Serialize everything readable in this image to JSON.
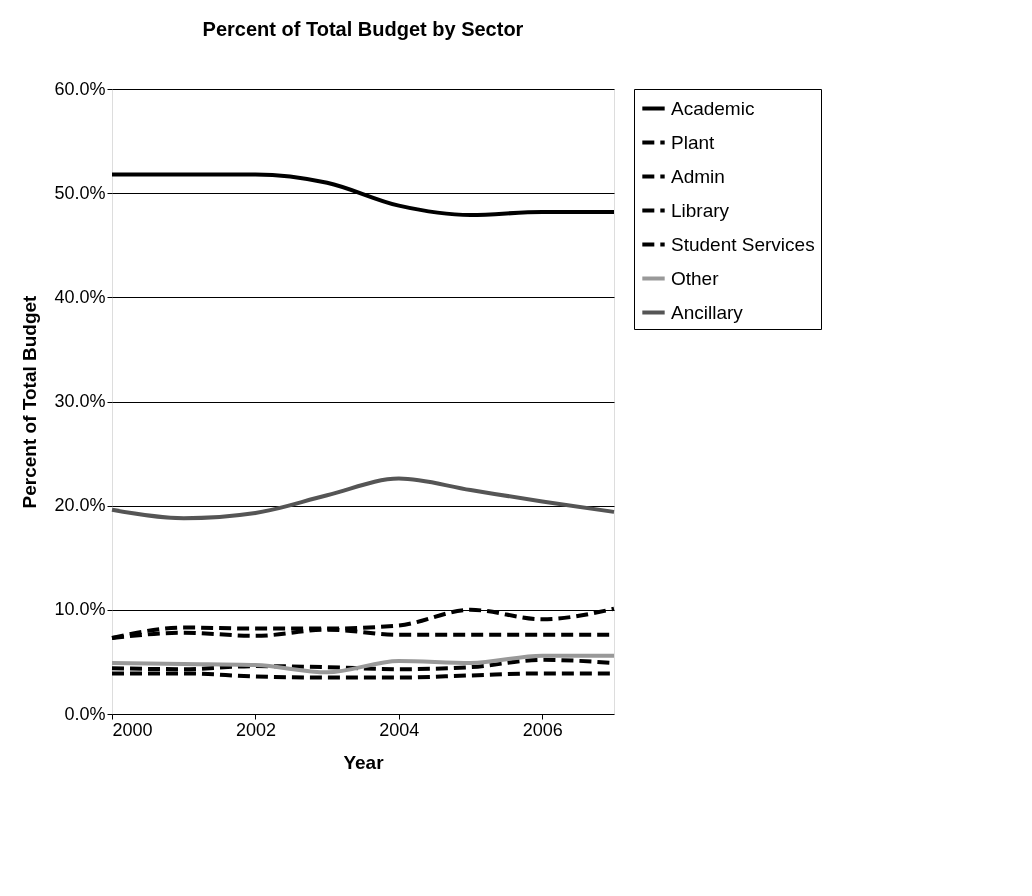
{
  "chart_data": {
    "type": "line",
    "title": "Percent of Total Budget by Sector",
    "xlabel": "Year",
    "ylabel": "Percent of Total Budget",
    "x": [
      2000,
      2001,
      2002,
      2003,
      2004,
      2005,
      2006,
      2007
    ],
    "series": [
      {
        "name": "Academic",
        "color": "#000000",
        "line_style": "solid",
        "values": [
          51.8,
          51.8,
          51.8,
          51.0,
          48.8,
          47.9,
          48.2,
          48.2
        ]
      },
      {
        "name": "Plant",
        "color": "#000000",
        "line_style": "dashed",
        "values": [
          7.3,
          7.8,
          7.5,
          8.1,
          7.6,
          7.6,
          7.6,
          7.6
        ]
      },
      {
        "name": "Admin",
        "color": "#000000",
        "line_style": "dashed",
        "values": [
          7.3,
          8.3,
          8.2,
          8.2,
          8.5,
          10.0,
          9.1,
          10.1
        ]
      },
      {
        "name": "Library",
        "color": "#000000",
        "line_style": "dashed",
        "values": [
          4.4,
          4.3,
          4.6,
          4.5,
          4.3,
          4.5,
          5.2,
          4.9
        ]
      },
      {
        "name": "Student Services",
        "color": "#000000",
        "line_style": "dashed",
        "values": [
          3.9,
          3.9,
          3.6,
          3.5,
          3.5,
          3.7,
          3.9,
          3.9
        ]
      },
      {
        "name": "Other",
        "color": "#999999",
        "line_style": "solid",
        "values": [
          4.9,
          4.8,
          4.7,
          4.0,
          5.1,
          4.9,
          5.6,
          5.6
        ]
      },
      {
        "name": "Ancillary",
        "color": "#555555",
        "line_style": "solid",
        "values": [
          19.6,
          18.8,
          19.3,
          21.0,
          22.6,
          21.5,
          20.4,
          19.4
        ]
      }
    ],
    "xlim": [
      2000,
      2007
    ],
    "xticks": [
      2000,
      2002,
      2004,
      2006
    ],
    "ylim": [
      0,
      60
    ],
    "yticks": [
      {
        "value": 0,
        "label": "0.0%"
      },
      {
        "value": 10,
        "label": "10.0%"
      },
      {
        "value": 20,
        "label": "20.0%"
      },
      {
        "value": 30,
        "label": "30.0%"
      },
      {
        "value": 40,
        "label": "40.0%"
      },
      {
        "value": 50,
        "label": "50.0%"
      },
      {
        "value": 60,
        "label": "60.0%"
      }
    ],
    "grid": "y",
    "legend": "right",
    "marker": "none"
  }
}
